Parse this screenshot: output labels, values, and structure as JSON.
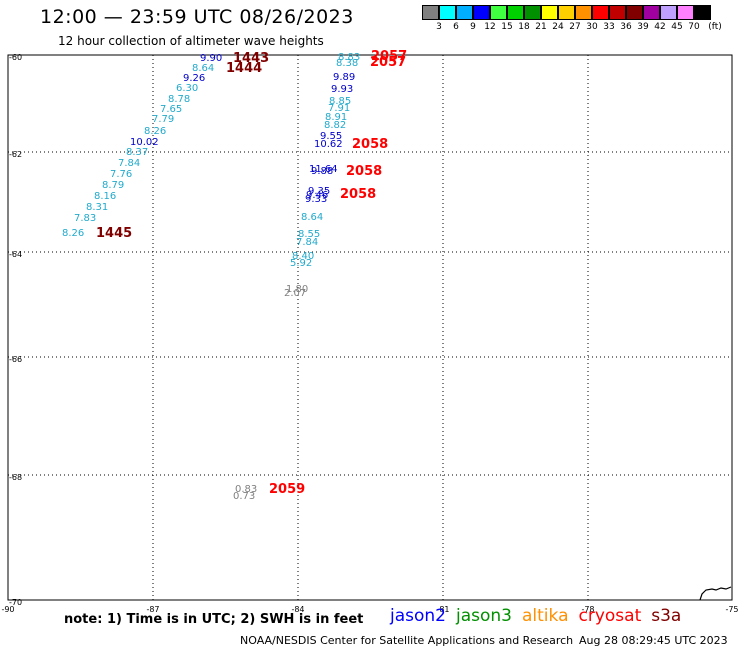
{
  "header": {
    "title": "12:00 — 23:59 UTC 08/26/2023",
    "subtitle": "12 hour collection of altimeter wave heights"
  },
  "legend": {
    "colors": [
      "#808080",
      "#00ffff",
      "#00b0ff",
      "#0000ff",
      "#40ff40",
      "#00d000",
      "#009000",
      "#ffff00",
      "#ffd000",
      "#ff9000",
      "#ff0000",
      "#c00000",
      "#800000",
      "#a000a0",
      "#c0a0ff",
      "#ff80ff",
      "#000000"
    ],
    "labels": [
      "3",
      "6",
      "9",
      "12",
      "15",
      "18",
      "21",
      "24",
      "27",
      "30",
      "33",
      "36",
      "39",
      "42",
      "45",
      "70",
      "(ft)"
    ]
  },
  "map": {
    "lat_labels": [
      "-60",
      "-62",
      "-64",
      "-66",
      "-68",
      "-70"
    ],
    "lon_labels": [
      "-90",
      "-87",
      "-84",
      "-81",
      "-78",
      "-75"
    ],
    "color_map": {
      "cyan": "#22aacc",
      "blue": "#0000cc",
      "gray": "#808080",
      "time": "#ff0000",
      "time_dark": "#800000"
    },
    "wave_heights": [
      {
        "text": "9.90",
        "color": "blue"
      },
      {
        "text": "8.64",
        "color": "cyan"
      },
      {
        "text": "9.26",
        "color": "blue"
      },
      {
        "text": "6.30",
        "color": "cyan"
      },
      {
        "text": "8.78",
        "color": "cyan"
      },
      {
        "text": "7.65",
        "color": "cyan"
      },
      {
        "text": "7.79",
        "color": "cyan"
      },
      {
        "text": "8.26",
        "color": "cyan"
      },
      {
        "text": "10.02",
        "color": "blue"
      },
      {
        "text": "8.37",
        "color": "cyan"
      },
      {
        "text": "7.84",
        "color": "cyan"
      },
      {
        "text": "7.76",
        "color": "cyan"
      },
      {
        "text": "8.79",
        "color": "cyan"
      },
      {
        "text": "8.16",
        "color": "cyan"
      },
      {
        "text": "8.31",
        "color": "cyan"
      },
      {
        "text": "7.83",
        "color": "cyan"
      },
      {
        "text": "8.26",
        "color": "cyan"
      },
      {
        "text": "8.83",
        "color": "cyan"
      },
      {
        "text": "8.38",
        "color": "cyan"
      },
      {
        "text": "9.89",
        "color": "blue"
      },
      {
        "text": "9.93",
        "color": "blue"
      },
      {
        "text": "8.85",
        "color": "cyan"
      },
      {
        "text": "7.91",
        "color": "cyan"
      },
      {
        "text": "8.91",
        "color": "cyan"
      },
      {
        "text": "8.82",
        "color": "cyan"
      },
      {
        "text": "9.55",
        "color": "blue"
      },
      {
        "text": "10.62",
        "color": "blue"
      },
      {
        "text": "11.64",
        "color": "blue"
      },
      {
        "text": "9.88",
        "color": "blue"
      },
      {
        "text": "9.35",
        "color": "blue"
      },
      {
        "text": "9.46",
        "color": "blue"
      },
      {
        "text": "9.33",
        "color": "blue"
      },
      {
        "text": "8.64",
        "color": "cyan"
      },
      {
        "text": "8.55",
        "color": "cyan"
      },
      {
        "text": "7.84",
        "color": "cyan"
      },
      {
        "text": "8.40",
        "color": "cyan"
      },
      {
        "text": "5.92",
        "color": "cyan"
      },
      {
        "text": "1.80",
        "color": "gray"
      },
      {
        "text": "2.07",
        "color": "gray"
      },
      {
        "text": "0.83",
        "color": "gray"
      },
      {
        "text": "0.73",
        "color": "gray"
      }
    ],
    "pass_times": [
      {
        "text": "1443",
        "color": "time_dark"
      },
      {
        "text": "1444",
        "color": "time_dark"
      },
      {
        "text": "1445",
        "color": "time_dark"
      },
      {
        "text": "2057",
        "color": "time"
      },
      {
        "text": "2057",
        "color": "time"
      },
      {
        "text": "2058",
        "color": "time"
      },
      {
        "text": "2058",
        "color": "time"
      },
      {
        "text": "2058",
        "color": "time"
      },
      {
        "text": "2059",
        "color": "time"
      }
    ]
  },
  "footer": {
    "note": "note:  1) Time is in UTC;  2) SWH is in feet",
    "satellites": [
      {
        "name": "jason2",
        "color": "#0000ff"
      },
      {
        "name": "jason3",
        "color": "#009000"
      },
      {
        "name": "altika",
        "color": "#ff9000"
      },
      {
        "name": "cryosat",
        "color": "#ff0000"
      },
      {
        "name": "s3a",
        "color": "#800000"
      }
    ],
    "credit": "NOAA/NESDIS Center for Satellite Applications and Research",
    "timestamp": "Aug 28 08:29:45 UTC 2023"
  }
}
